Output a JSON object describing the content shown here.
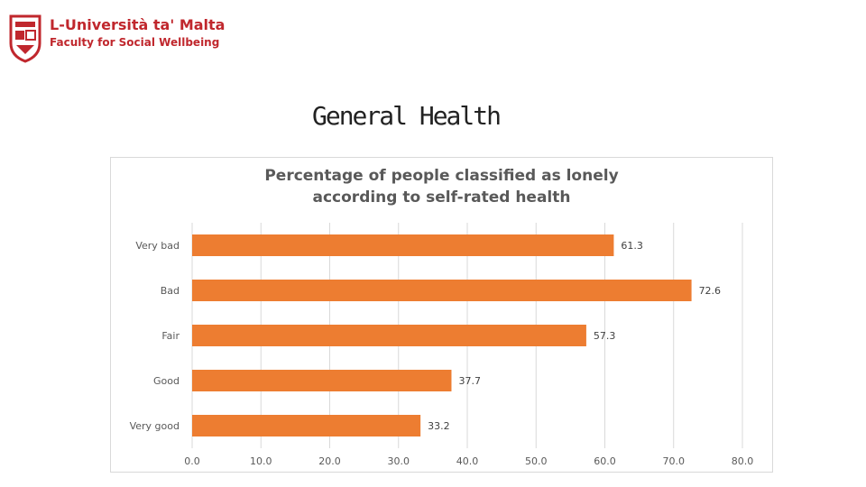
{
  "header": {
    "university": "L-Università ta' Malta",
    "faculty": "Faculty for Social Wellbeing"
  },
  "slide": {
    "title": "General Health"
  },
  "colors": {
    "brand": "#c0272d",
    "bar": "#ed7d31"
  },
  "chart_data": {
    "type": "bar",
    "orientation": "horizontal",
    "title_lines": [
      "Percentage of people classified as lonely",
      "according to self-rated health"
    ],
    "categories": [
      "Very bad",
      "Bad",
      "Fair",
      "Good",
      "Very good"
    ],
    "values": [
      61.3,
      72.6,
      57.3,
      37.7,
      33.2
    ],
    "xlim": [
      0,
      80
    ],
    "xticks": [
      "0.0",
      "10.0",
      "20.0",
      "30.0",
      "40.0",
      "50.0",
      "60.0",
      "70.0",
      "80.0"
    ],
    "xlabel": "",
    "ylabel": "",
    "grid": true
  }
}
